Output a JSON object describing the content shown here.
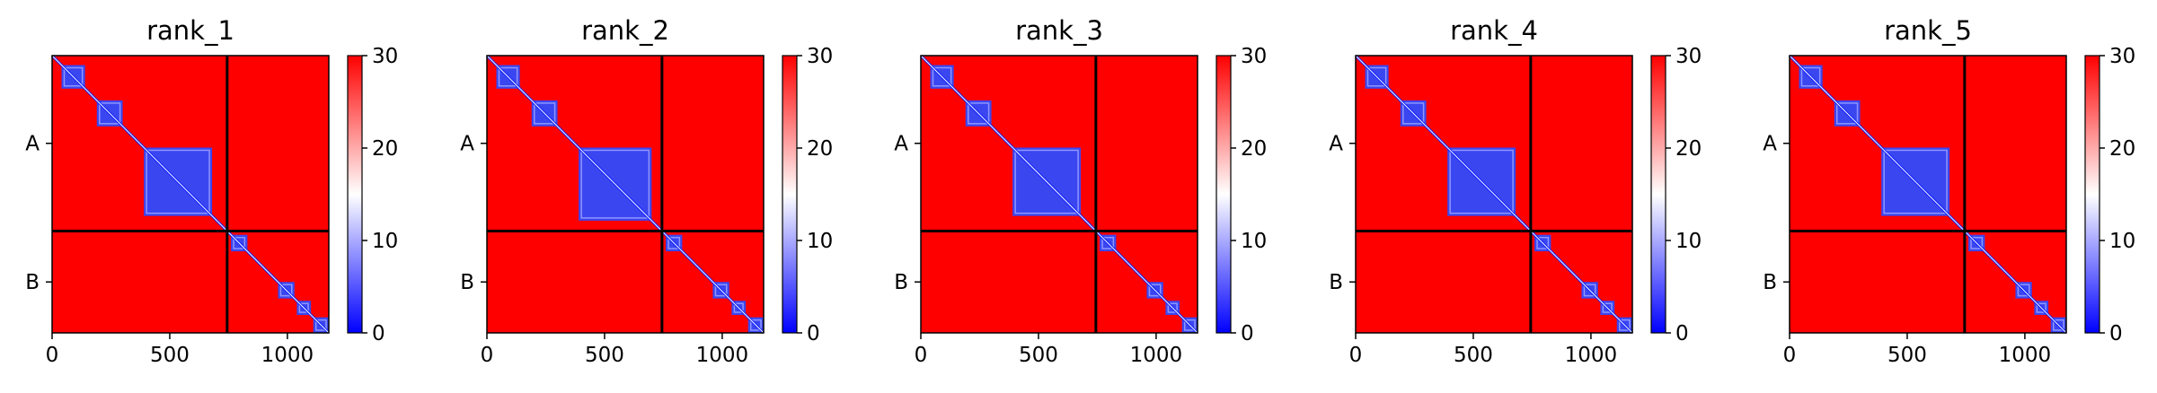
{
  "chart_data": [
    {
      "type": "heatmap",
      "title": "rank_1",
      "xticks": [
        "0",
        "500",
        "1000"
      ],
      "xtick_values": [
        0,
        500,
        1000
      ],
      "xlim": [
        0,
        1176
      ],
      "chains": [
        {
          "label": "A",
          "start": 0,
          "end": 744
        },
        {
          "label": "B",
          "start": 744,
          "end": 1176
        }
      ],
      "colorbar": {
        "min": 0,
        "max": 30,
        "ticks": [
          "0",
          "10",
          "20",
          "30"
        ],
        "colors": [
          "#0000ff",
          "#ffffff",
          "#ff0000"
        ]
      },
      "low_error_blocks": [
        [
          40,
          140
        ],
        [
          190,
          300
        ],
        [
          390,
          680
        ],
        [
          760,
          830
        ],
        [
          960,
          1030
        ],
        [
          1040,
          1100
        ],
        [
          1110,
          1176
        ]
      ]
    },
    {
      "type": "heatmap",
      "title": "rank_2",
      "xticks": [
        "0",
        "500",
        "1000"
      ],
      "xtick_values": [
        0,
        500,
        1000
      ],
      "xlim": [
        0,
        1176
      ],
      "chains": [
        {
          "label": "A",
          "start": 0,
          "end": 744
        },
        {
          "label": "B",
          "start": 744,
          "end": 1176
        }
      ],
      "colorbar": {
        "min": 0,
        "max": 30,
        "ticks": [
          "0",
          "10",
          "20",
          "30"
        ],
        "colors": [
          "#0000ff",
          "#ffffff",
          "#ff0000"
        ]
      },
      "low_error_blocks": [
        [
          40,
          140
        ],
        [
          190,
          300
        ],
        [
          390,
          700
        ],
        [
          760,
          830
        ],
        [
          960,
          1030
        ],
        [
          1040,
          1100
        ],
        [
          1110,
          1176
        ]
      ]
    },
    {
      "type": "heatmap",
      "title": "rank_3",
      "xticks": [
        "0",
        "500",
        "1000"
      ],
      "xtick_values": [
        0,
        500,
        1000
      ],
      "xlim": [
        0,
        1176
      ],
      "chains": [
        {
          "label": "A",
          "start": 0,
          "end": 744
        },
        {
          "label": "B",
          "start": 744,
          "end": 1176
        }
      ],
      "colorbar": {
        "min": 0,
        "max": 30,
        "ticks": [
          "0",
          "10",
          "20",
          "30"
        ],
        "colors": [
          "#0000ff",
          "#ffffff",
          "#ff0000"
        ]
      },
      "low_error_blocks": [
        [
          40,
          140
        ],
        [
          190,
          300
        ],
        [
          390,
          680
        ],
        [
          760,
          830
        ],
        [
          960,
          1030
        ],
        [
          1040,
          1100
        ],
        [
          1110,
          1176
        ]
      ]
    },
    {
      "type": "heatmap",
      "title": "rank_4",
      "xticks": [
        "0",
        "500",
        "1000"
      ],
      "xtick_values": [
        0,
        500,
        1000
      ],
      "xlim": [
        0,
        1176
      ],
      "chains": [
        {
          "label": "A",
          "start": 0,
          "end": 744
        },
        {
          "label": "B",
          "start": 744,
          "end": 1176
        }
      ],
      "colorbar": {
        "min": 0,
        "max": 30,
        "ticks": [
          "0",
          "10",
          "20",
          "30"
        ],
        "colors": [
          "#0000ff",
          "#ffffff",
          "#ff0000"
        ]
      },
      "low_error_blocks": [
        [
          40,
          140
        ],
        [
          190,
          300
        ],
        [
          390,
          680
        ],
        [
          760,
          830
        ],
        [
          960,
          1030
        ],
        [
          1040,
          1100
        ],
        [
          1110,
          1176
        ]
      ]
    },
    {
      "type": "heatmap",
      "title": "rank_5",
      "xticks": [
        "0",
        "500",
        "1000"
      ],
      "xtick_values": [
        0,
        500,
        1000
      ],
      "xlim": [
        0,
        1176
      ],
      "chains": [
        {
          "label": "A",
          "start": 0,
          "end": 744
        },
        {
          "label": "B",
          "start": 744,
          "end": 1176
        }
      ],
      "colorbar": {
        "min": 0,
        "max": 30,
        "ticks": [
          "0",
          "10",
          "20",
          "30"
        ],
        "colors": [
          "#0000ff",
          "#ffffff",
          "#ff0000"
        ]
      },
      "low_error_blocks": [
        [
          40,
          140
        ],
        [
          190,
          300
        ],
        [
          390,
          680
        ],
        [
          760,
          830
        ],
        [
          960,
          1030
        ],
        [
          1040,
          1100
        ],
        [
          1110,
          1176
        ]
      ]
    }
  ]
}
